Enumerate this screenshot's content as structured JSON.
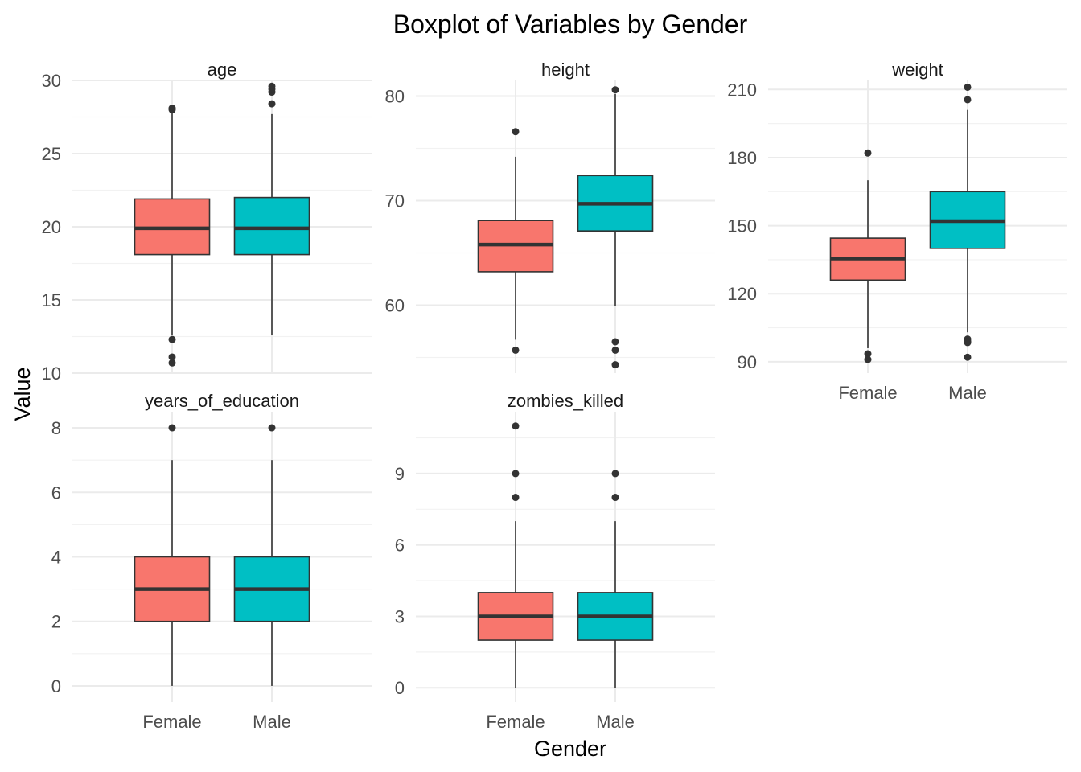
{
  "chart_data": {
    "type": "boxplot",
    "title": "Boxplot of Variables by Gender",
    "xlabel": "Gender",
    "ylabel": "Value",
    "categories": [
      "Female",
      "Male"
    ],
    "colors": {
      "Female": "#F8766D",
      "Male": "#00BFC4"
    },
    "grid": "on",
    "legend": "none",
    "panels": [
      {
        "name": "age",
        "ylim": [
          10,
          30
        ],
        "yticks": [
          10,
          15,
          20,
          25,
          30
        ],
        "ytick_labels": [
          "10",
          "15",
          "20",
          "25",
          "30"
        ],
        "boxes": [
          {
            "group": "Female",
            "q1": 18.1,
            "median": 19.9,
            "q3": 21.9,
            "whisker_low": 12.6,
            "whisker_high": 27.8,
            "outliers": [
              12.3,
              11.1,
              10.7,
              28.0,
              28.1
            ]
          },
          {
            "group": "Male",
            "q1": 18.1,
            "median": 19.9,
            "q3": 22.0,
            "whisker_low": 12.6,
            "whisker_high": 27.7,
            "outliers": [
              28.4,
              29.2,
              29.4,
              29.6
            ]
          }
        ]
      },
      {
        "name": "height",
        "ylim": [
          53.5,
          81.5
        ],
        "yticks": [
          60,
          70,
          80
        ],
        "ytick_labels": [
          "60",
          "70",
          "80"
        ],
        "boxes": [
          {
            "group": "Female",
            "q1": 63.2,
            "median": 65.8,
            "q3": 68.1,
            "whisker_low": 56.7,
            "whisker_high": 74.2,
            "outliers": [
              55.7,
              76.6
            ]
          },
          {
            "group": "Male",
            "q1": 67.1,
            "median": 69.7,
            "q3": 72.4,
            "whisker_low": 59.9,
            "whisker_high": 80.2,
            "outliers": [
              56.5,
              55.7,
              54.3,
              80.6
            ]
          }
        ]
      },
      {
        "name": "weight",
        "ylim": [
          85,
          214
        ],
        "yticks": [
          90,
          120,
          150,
          180,
          210
        ],
        "ytick_labels": [
          "90",
          "120",
          "150",
          "180",
          "210"
        ],
        "boxes": [
          {
            "group": "Female",
            "q1": 126,
            "median": 135.5,
            "q3": 144.5,
            "whisker_low": 96,
            "whisker_high": 170,
            "outliers": [
              93.5,
              91,
              182
            ]
          },
          {
            "group": "Male",
            "q1": 140,
            "median": 152,
            "q3": 165,
            "whisker_low": 103,
            "whisker_high": 201,
            "outliers": [
              100,
              99,
              98.5,
              92,
              205.5,
              211
            ]
          }
        ]
      },
      {
        "name": "years_of_education",
        "ylim": [
          -0.5,
          8.5
        ],
        "yticks": [
          0,
          2,
          4,
          6,
          8
        ],
        "ytick_labels": [
          "0",
          "2",
          "4",
          "6",
          "8"
        ],
        "boxes": [
          {
            "group": "Female",
            "q1": 2,
            "median": 3,
            "q3": 4,
            "whisker_low": 0,
            "whisker_high": 7,
            "outliers": [
              8
            ]
          },
          {
            "group": "Male",
            "q1": 2,
            "median": 3,
            "q3": 4,
            "whisker_low": 0,
            "whisker_high": 7,
            "outliers": [
              8
            ]
          }
        ]
      },
      {
        "name": "zombies_killed",
        "ylim": [
          -0.6,
          11.6
        ],
        "yticks": [
          0,
          3,
          6,
          9
        ],
        "ytick_labels": [
          "0",
          "3",
          "6",
          "9"
        ],
        "boxes": [
          {
            "group": "Female",
            "q1": 2,
            "median": 3,
            "q3": 4,
            "whisker_low": 0,
            "whisker_high": 7,
            "outliers": [
              8,
              9,
              11
            ]
          },
          {
            "group": "Male",
            "q1": 2,
            "median": 3,
            "q3": 4,
            "whisker_low": 0,
            "whisker_high": 7,
            "outliers": [
              8,
              9
            ]
          }
        ]
      }
    ]
  }
}
